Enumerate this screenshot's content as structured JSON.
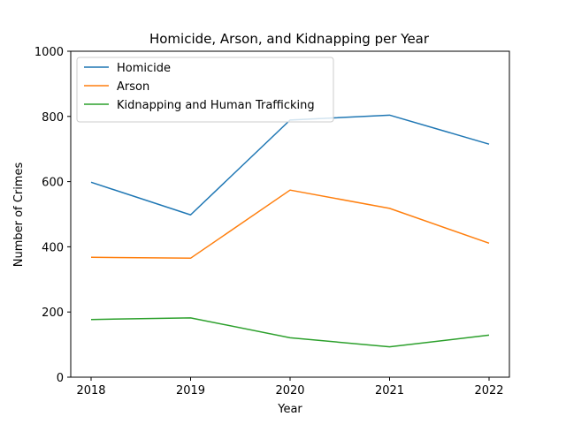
{
  "chart_data": {
    "type": "line",
    "title": "Homicide, Arson, and Kidnapping per Year",
    "xlabel": "Year",
    "ylabel": "Number of Crimes",
    "x": [
      "2018",
      "2019",
      "2020",
      "2021",
      "2022"
    ],
    "ylim": [
      0,
      1000
    ],
    "yticks": [
      "0",
      "200",
      "400",
      "600",
      "800",
      "1000"
    ],
    "grid": false,
    "legend_position": "top-left",
    "series": [
      {
        "name": "Homicide",
        "color": "#1f77b4",
        "values": [
          598,
          498,
          789,
          804,
          715
        ]
      },
      {
        "name": "Arson",
        "color": "#ff7f0e",
        "values": [
          368,
          365,
          574,
          518,
          411
        ]
      },
      {
        "name": "Kidnapping and Human Trafficking",
        "color": "#2ca02c",
        "values": [
          177,
          182,
          121,
          93,
          129
        ]
      }
    ]
  }
}
